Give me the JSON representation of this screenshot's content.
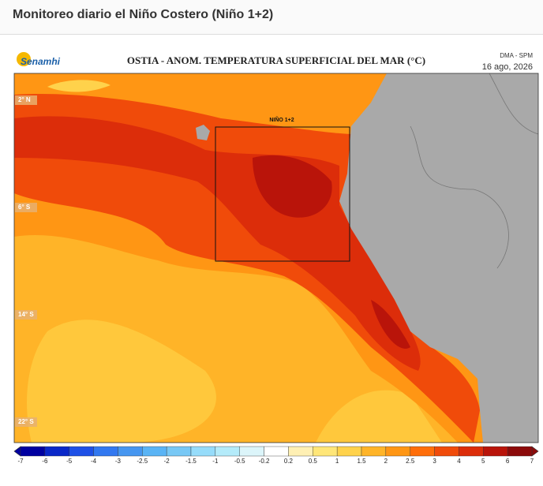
{
  "header": {
    "title": "Monitoreo diario el Niño Costero (Niño 1+2)"
  },
  "figure": {
    "logo": "Senamhi",
    "title": "OSTIA - ANOM. TEMPERATURA SUPERFICIAL DEL MAR (°C)",
    "source": "DMA - SPM",
    "date": "16 ago, 2026",
    "region_label": "NIÑO 1+2",
    "latitudes": [
      "2° N",
      "6° S",
      "14° S",
      "22° S"
    ]
  },
  "colorbar": {
    "labels": [
      "-7",
      "-6",
      "-5",
      "-4",
      "-3",
      "-2.5",
      "-2",
      "-1.5",
      "-1",
      "-0.5",
      "-0.2",
      "0.2",
      "0.5",
      "1",
      "1.5",
      "2",
      "2.5",
      "3",
      "4",
      "5",
      "6",
      "7"
    ],
    "colors": [
      "#0000a0",
      "#0a28c8",
      "#1e50e6",
      "#3278f0",
      "#4696f0",
      "#5ab4f5",
      "#78c8f5",
      "#96dcfa",
      "#b4ebfa",
      "#dcf5fa",
      "#ffffff",
      "#fff0b4",
      "#ffe678",
      "#ffd24b",
      "#ffb428",
      "#ff9614",
      "#ff6e0a",
      "#f04b0a",
      "#dc2d0a",
      "#b9140a",
      "#8c0a0a"
    ]
  }
}
